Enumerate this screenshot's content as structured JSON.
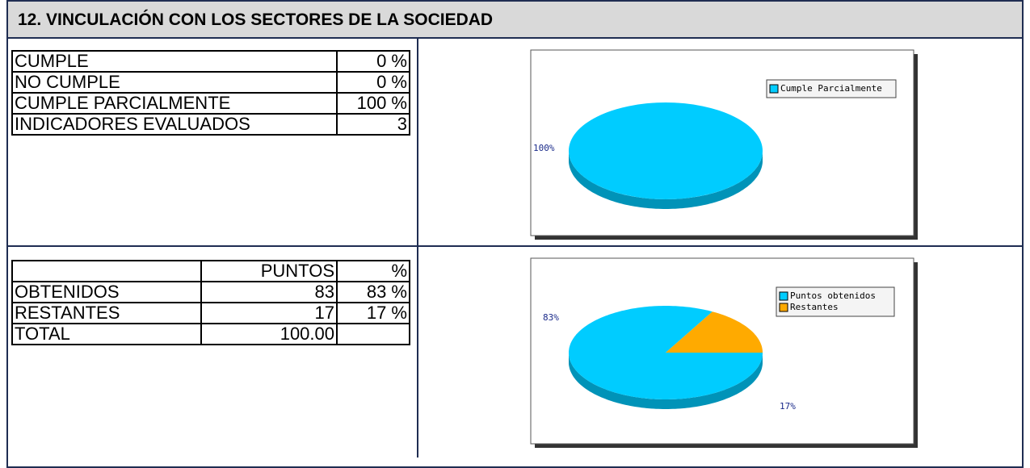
{
  "header": {
    "title": "12. VINCULACIÓN CON LOS SECTORES DE LA SOCIEDAD"
  },
  "table1": {
    "rows": [
      [
        "CUMPLE",
        "0 %"
      ],
      [
        "NO CUMPLE",
        "0 %"
      ],
      [
        "CUMPLE PARCIALMENTE",
        "100 %"
      ],
      [
        "INDICADORES EVALUADOS",
        "3"
      ]
    ]
  },
  "table2": {
    "header": [
      "PUNTOS",
      "%"
    ],
    "rows": [
      [
        "OBTENIDOS",
        "83",
        "83 %"
      ],
      [
        "RESTANTES",
        "17",
        "17 %"
      ],
      [
        "TOTAL",
        "100.00"
      ]
    ]
  },
  "chart_data": [
    {
      "type": "pie",
      "categories": [
        "Cumple Parcialmente"
      ],
      "values": [
        100
      ],
      "value_labels": [
        "100%"
      ],
      "colors": [
        "#00ccff"
      ],
      "legend": "upper right"
    },
    {
      "type": "pie",
      "categories": [
        "Puntos obtenidos",
        "Restantes"
      ],
      "values": [
        83,
        17
      ],
      "value_labels": [
        "83%",
        "17%"
      ],
      "colors": [
        "#00ccff",
        "#ffaa00"
      ],
      "legend": "upper right"
    }
  ]
}
